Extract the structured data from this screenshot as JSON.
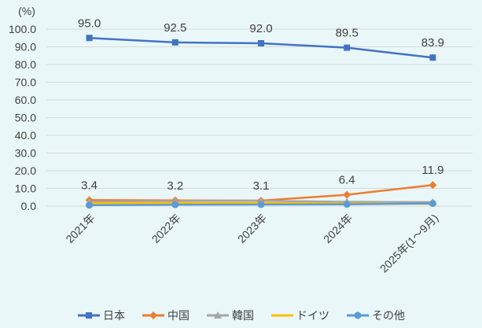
{
  "chart_data": {
    "type": "line",
    "title": "",
    "unit_label": "(%)",
    "categories": [
      "2021年",
      "2022年",
      "2023年",
      "2024年",
      "2025年(1～9月)"
    ],
    "y_ticks": [
      "0.0",
      "10.0",
      "20.0",
      "30.0",
      "40.0",
      "50.0",
      "60.0",
      "70.0",
      "80.0",
      "90.0",
      "100.0"
    ],
    "ylim": [
      0,
      100
    ],
    "grid": true,
    "legend_position": "bottom",
    "series": [
      {
        "name": "日本",
        "key": "japan",
        "color": "#4472C4",
        "marker": "square",
        "values": [
          95.0,
          92.5,
          92.0,
          89.5,
          83.9
        ],
        "labels": [
          "95.0",
          "92.5",
          "92.0",
          "89.5",
          "83.9"
        ]
      },
      {
        "name": "中国",
        "key": "china",
        "color": "#ED7D31",
        "marker": "diamond",
        "values": [
          3.4,
          3.2,
          3.1,
          6.4,
          11.9
        ],
        "labels": [
          "3.4",
          "3.2",
          "3.1",
          "6.4",
          "11.9"
        ]
      },
      {
        "name": "韓国",
        "key": "korea",
        "color": "#A5A5A5",
        "marker": "triangle",
        "values": [
          2.4,
          2.9,
          3.0,
          2.4,
          2.2
        ],
        "labels": null
      },
      {
        "name": "ドイツ",
        "key": "germany",
        "color": "#FFC000",
        "marker": "none",
        "values": [
          1.6,
          1.8,
          1.8,
          1.5,
          1.3
        ],
        "labels": null
      },
      {
        "name": "その他",
        "key": "other",
        "color": "#5B9BD5",
        "marker": "circle",
        "values": [
          0.5,
          0.8,
          0.9,
          1.0,
          1.5
        ],
        "labels": null
      }
    ]
  },
  "colors": {
    "background": "#E9F7F8",
    "gridline": "#D9D9D9",
    "text": "#404040"
  }
}
